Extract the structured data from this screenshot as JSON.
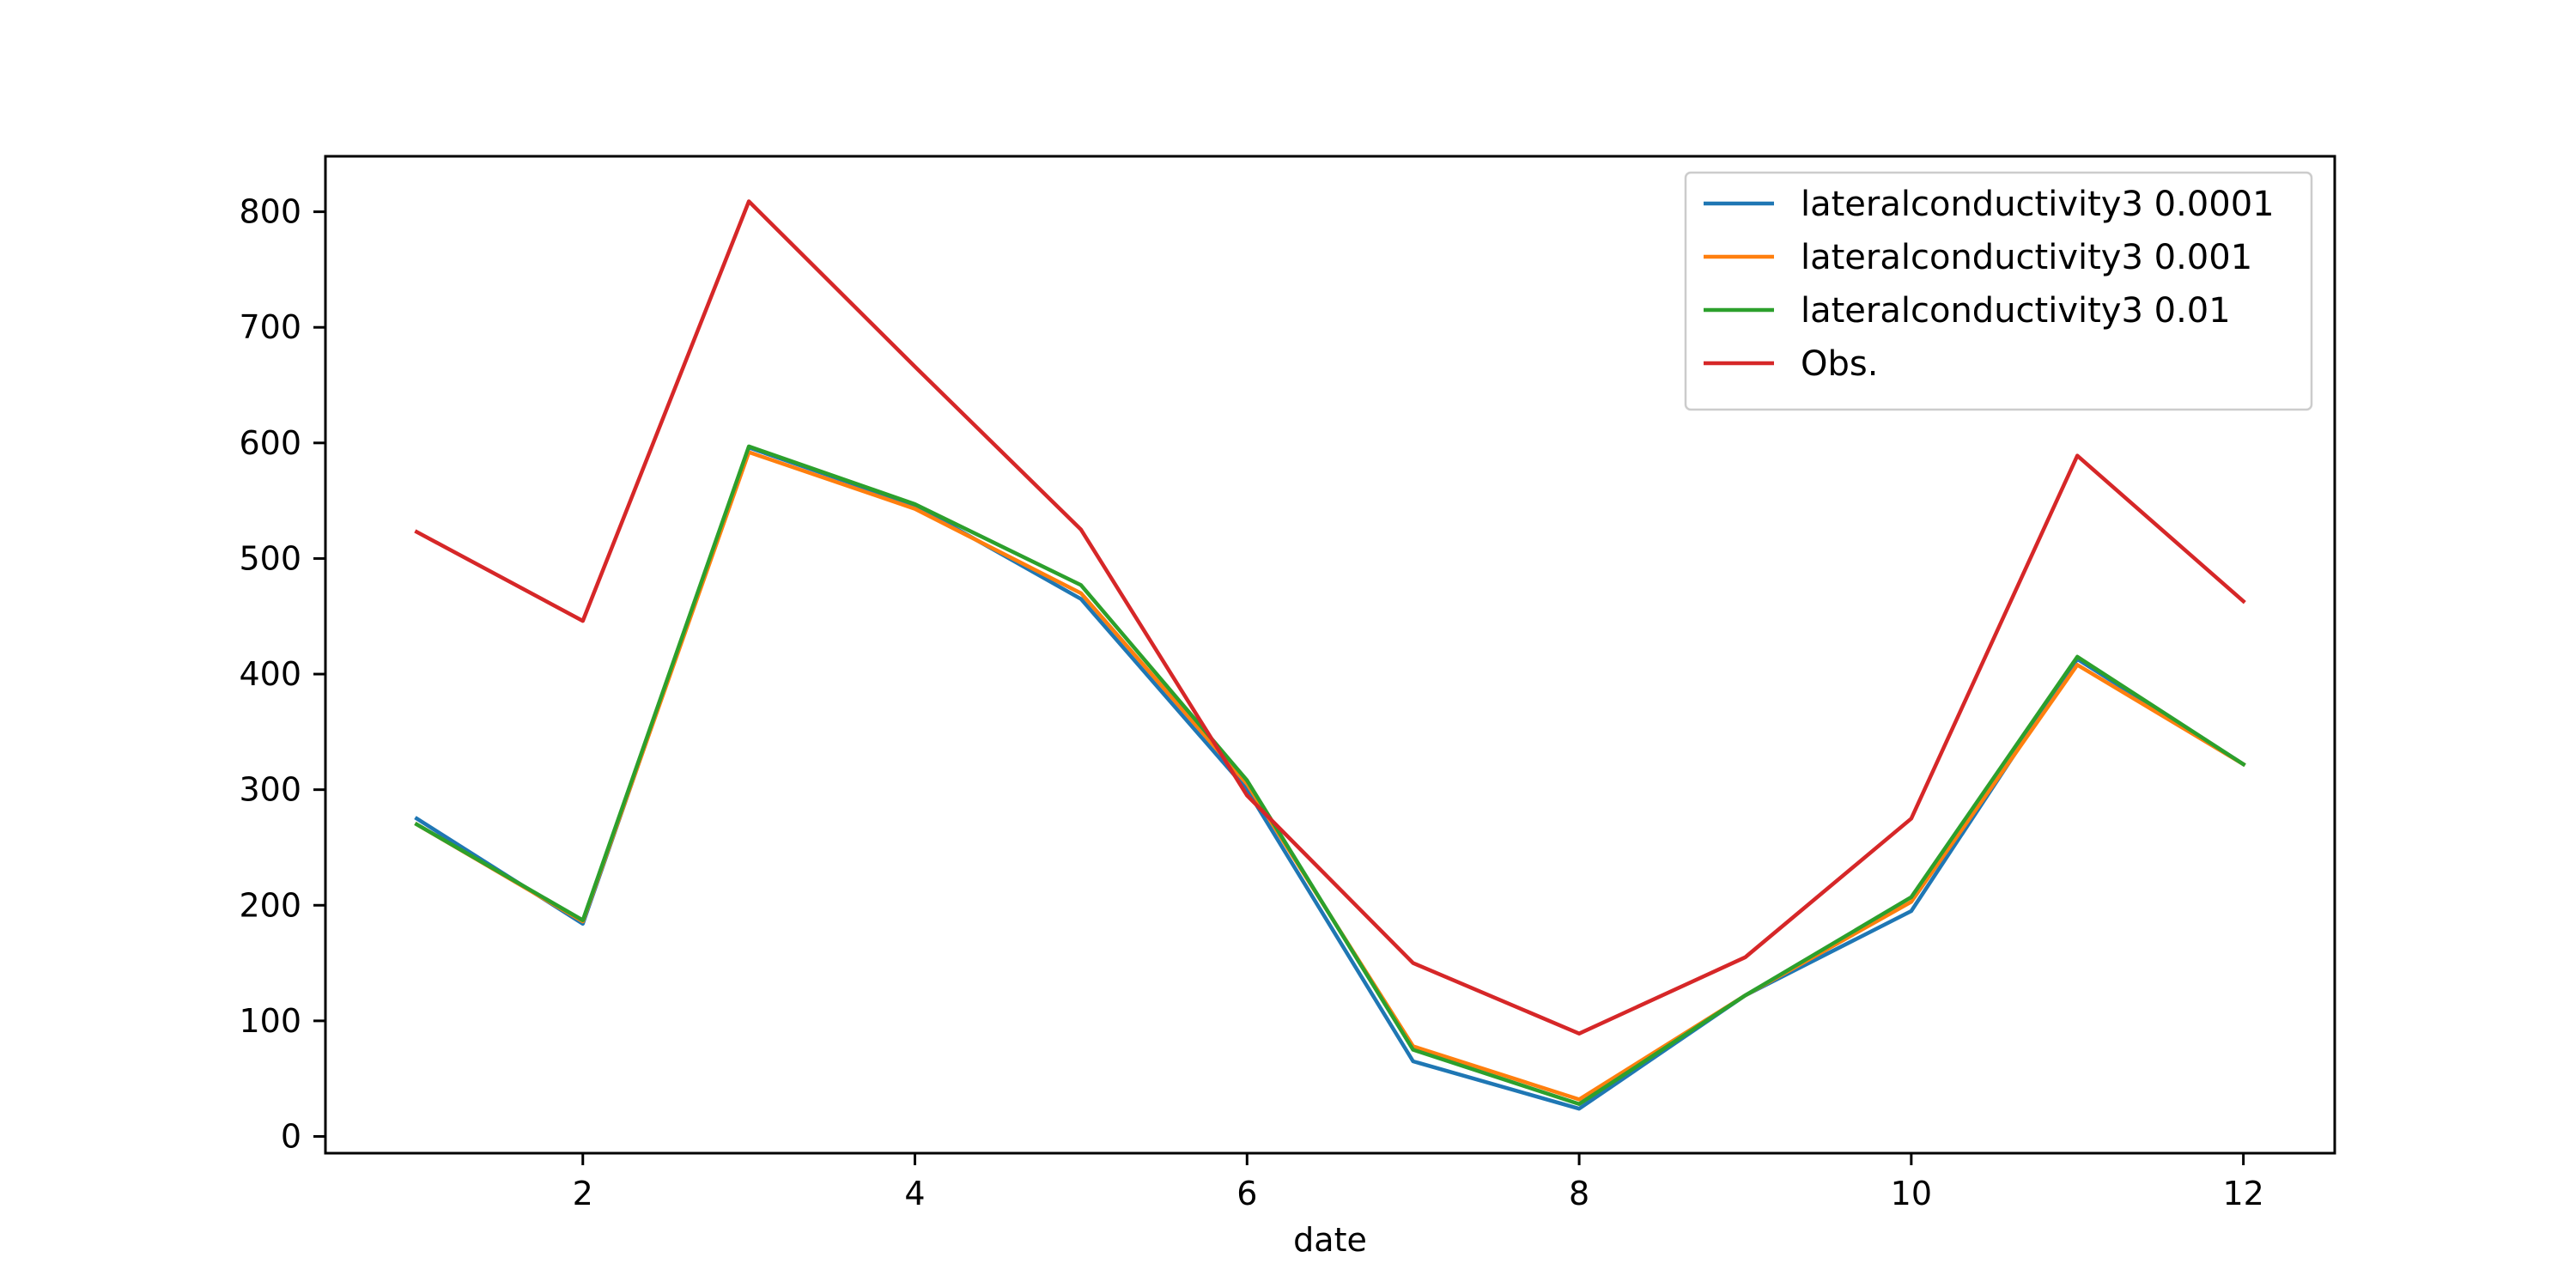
{
  "chart_data": {
    "type": "line",
    "title": "",
    "xlabel": "date",
    "ylabel": "",
    "x": [
      1,
      2,
      3,
      4,
      5,
      6,
      7,
      8,
      9,
      10,
      11,
      12
    ],
    "xlim": [
      0.45,
      12.55
    ],
    "ylim": [
      -14.5,
      848
    ],
    "xticks": [
      2,
      4,
      6,
      8,
      10,
      12
    ],
    "yticks": [
      0,
      100,
      200,
      300,
      400,
      500,
      600,
      700,
      800
    ],
    "grid": false,
    "legend_position": "top-right",
    "series": [
      {
        "name": "lateralconductivity3 0.0001",
        "color": "#1f77b4",
        "values": [
          275,
          184,
          596,
          546,
          465,
          300,
          65,
          24,
          122,
          195,
          413,
          322
        ]
      },
      {
        "name": "lateralconductivity3 0.001",
        "color": "#ff7f0e",
        "values": [
          270,
          186,
          592,
          543,
          470,
          305,
          78,
          32,
          122,
          203,
          408,
          322
        ]
      },
      {
        "name": "lateralconductivity3 0.01",
        "color": "#2ca02c",
        "values": [
          270,
          187,
          597,
          547,
          477,
          308,
          75,
          28,
          122,
          207,
          415,
          322
        ]
      },
      {
        "name": "Obs.",
        "color": "#d62728",
        "values": [
          523,
          446,
          809,
          666,
          525,
          295,
          150,
          89,
          155,
          275,
          589,
          463
        ]
      }
    ]
  }
}
